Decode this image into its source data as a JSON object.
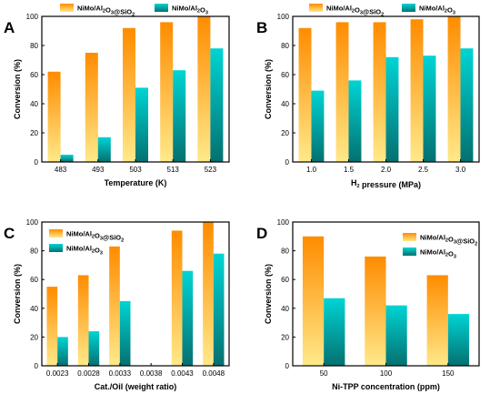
{
  "colors": {
    "series1_top": "#ff8c00",
    "series1_bottom": "#ffe98a",
    "series2_top": "#00d4d4",
    "series2_bottom": "#047070"
  },
  "chart_data": [
    {
      "type": "bar",
      "panel_label": "A",
      "xlabel": "Temperature (K)",
      "ylabel": "Conversion (%)",
      "ylim": [
        0,
        100
      ],
      "yticks": [
        0,
        20,
        40,
        60,
        80,
        100
      ],
      "categories": [
        "483",
        "493",
        "503",
        "513",
        "523"
      ],
      "legend_position": "top",
      "series": [
        {
          "name": "NiMo/Al2O3@SiO2",
          "values": [
            62,
            75,
            92,
            96,
            100
          ]
        },
        {
          "name": "NiMo/Al2O3",
          "values": [
            5,
            17,
            51,
            63,
            78
          ]
        }
      ]
    },
    {
      "type": "bar",
      "panel_label": "B",
      "xlabel": "H2 pressure (MPa)",
      "ylabel": "Conversion (%)",
      "ylim": [
        0,
        100
      ],
      "yticks": [
        0,
        20,
        40,
        60,
        80,
        100
      ],
      "categories": [
        "1.0",
        "1.5",
        "2.0",
        "2.5",
        "3.0"
      ],
      "legend_position": "top",
      "series": [
        {
          "name": "NiMo/Al2O3@SiO2",
          "values": [
            92,
            96,
            96,
            98,
            100
          ]
        },
        {
          "name": "NiMo/Al2O3",
          "values": [
            49,
            56,
            72,
            73,
            78
          ]
        }
      ]
    },
    {
      "type": "bar",
      "panel_label": "C",
      "xlabel": "Cat./Oil (weight ratio)",
      "ylabel": "Conversion (%)",
      "ylim": [
        0,
        100
      ],
      "yticks": [
        0,
        20,
        40,
        60,
        80,
        100
      ],
      "tick_labels": [
        "0.0023",
        "0.0028",
        "0.0033",
        "0.0038",
        "0.0043",
        "0.0048"
      ],
      "categories": [
        "0.0023",
        "0.0028",
        "0.0033",
        "0.0043",
        "0.0048"
      ],
      "legend_position": "top-left",
      "series": [
        {
          "name": "NiMo/Al2O3@SiO2",
          "values": [
            55,
            63,
            83,
            94,
            100
          ]
        },
        {
          "name": "NiMo/Al2O3",
          "values": [
            20,
            24,
            45,
            66,
            78
          ]
        }
      ]
    },
    {
      "type": "bar",
      "panel_label": "D",
      "xlabel": "Ni-TPP concentration (ppm)",
      "ylabel": "Conversion (%)",
      "ylim": [
        0,
        100
      ],
      "yticks": [
        0,
        20,
        40,
        60,
        80,
        100
      ],
      "categories": [
        "50",
        "100",
        "150"
      ],
      "legend_position": "top-right",
      "series": [
        {
          "name": "NiMo/Al2O3@SiO2",
          "values": [
            90,
            76,
            63
          ]
        },
        {
          "name": "NiMo/Al2O3",
          "values": [
            47,
            42,
            36
          ]
        }
      ]
    }
  ]
}
